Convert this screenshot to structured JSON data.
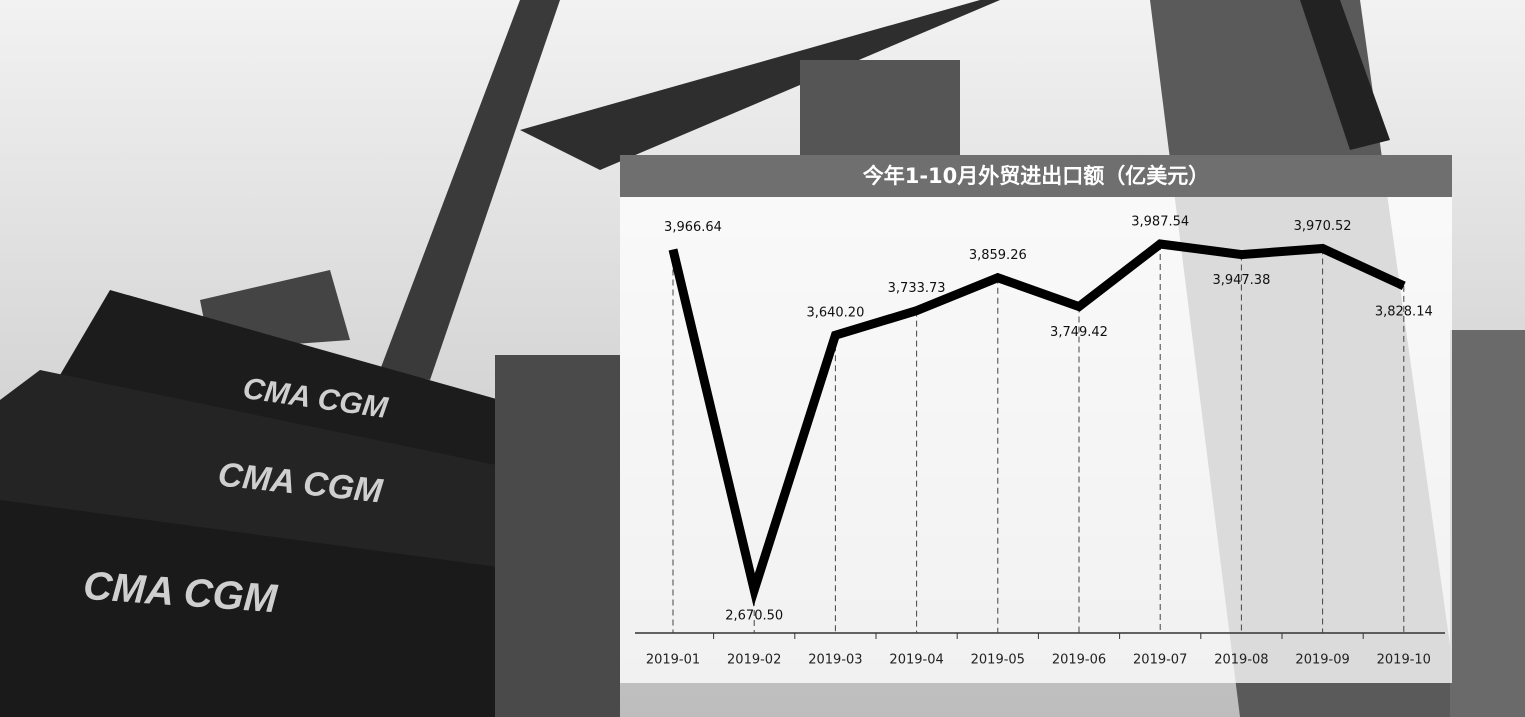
{
  "photo_text": [
    "CMA CGM",
    "CMA CGM",
    "CMA CGM"
  ],
  "chart_data": {
    "type": "line",
    "title": "今年1-10月外贸进出口额（亿美元）",
    "categories": [
      "2019-01",
      "2019-02",
      "2019-03",
      "2019-04",
      "2019-05",
      "2019-06",
      "2019-07",
      "2019-08",
      "2019-09",
      "2019-10"
    ],
    "values": [
      3966.64,
      2670.5,
      3640.2,
      3733.73,
      3859.26,
      3749.42,
      3987.54,
      3947.38,
      3970.52,
      3828.14
    ],
    "value_labels": [
      "3,966.64",
      "2,670.50",
      "3,640.20",
      "3,733.73",
      "3,859.26",
      "3,749.42",
      "3,987.54",
      "3,947.38",
      "3,970.52",
      "3,828.14"
    ],
    "color": "#000000",
    "drop_lines": true
  }
}
